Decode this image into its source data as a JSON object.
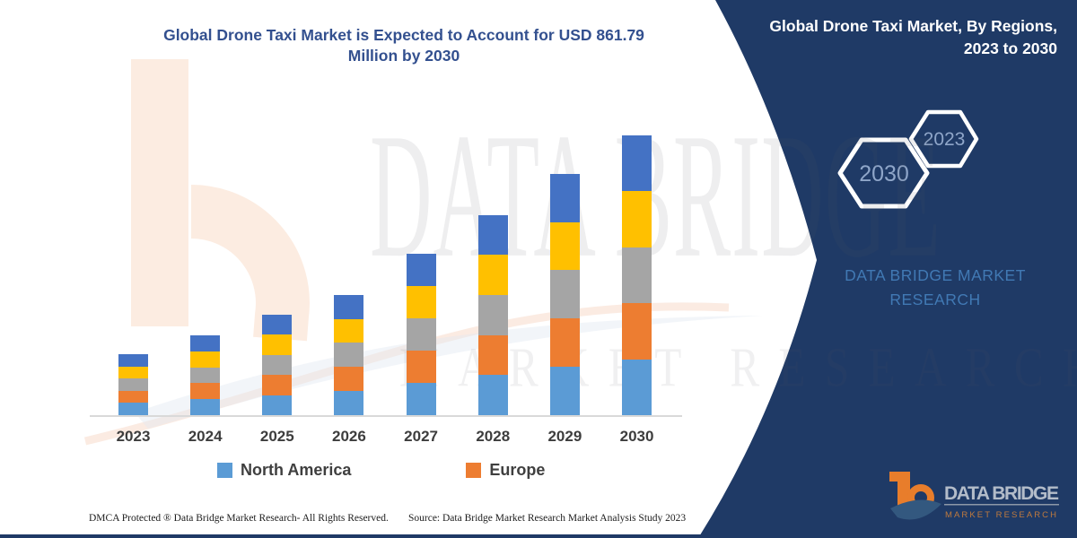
{
  "header": {
    "title_line1": "Global Drone Taxi Market is Expected to Account for USD 861.79",
    "title_line2": "Million by 2030"
  },
  "panel": {
    "title_line1": "Global Drone Taxi Market, By Regions,",
    "title_line2": "2023 to 2030",
    "hex_large_label": "2030",
    "hex_small_label": "2023",
    "brand_text": "DATA BRIDGE MARKET RESEARCH"
  },
  "watermark": {
    "line1": "DATA BRIDGE",
    "line2": "MARKET RESEARCH"
  },
  "legend": [
    {
      "label": "North America",
      "color": "#5B9BD5"
    },
    {
      "label": "Europe",
      "color": "#ED7D31"
    }
  ],
  "chart_data": {
    "type": "bar",
    "stacked": true,
    "title": "Global Drone Taxi Market is Expected to Account for USD 861.79 Million by 2030",
    "unit": "USD Million",
    "categories": [
      "2023",
      "2024",
      "2025",
      "2026",
      "2027",
      "2028",
      "2029",
      "2030"
    ],
    "totals": [
      188,
      246,
      310,
      371,
      498,
      617,
      744,
      861.79
    ],
    "series": [
      {
        "name": "North America",
        "color": "#5B9BD5",
        "values": [
          37.6,
          49.2,
          62.0,
          74.2,
          99.6,
          123.4,
          148.8,
          172.4
        ]
      },
      {
        "name": "Europe",
        "color": "#ED7D31",
        "values": [
          37.6,
          49.2,
          62.0,
          74.2,
          99.6,
          123.4,
          148.8,
          172.4
        ]
      },
      {
        "name": "unlabeled-region-gray",
        "color": "#A5A5A5",
        "values": [
          37.6,
          49.2,
          62.0,
          74.2,
          99.6,
          123.4,
          148.8,
          172.4
        ]
      },
      {
        "name": "unlabeled-region-yellow",
        "color": "#FFC000",
        "values": [
          37.6,
          49.2,
          62.0,
          74.2,
          99.6,
          123.4,
          148.8,
          172.4
        ]
      },
      {
        "name": "unlabeled-region-darkblue",
        "color": "#4472C4",
        "values": [
          37.6,
          49.2,
          62.0,
          74.2,
          99.6,
          123.4,
          148.8,
          172.4
        ]
      }
    ],
    "legend_entries_visible": [
      "North America",
      "Europe"
    ],
    "xlabel": "",
    "ylabel": "",
    "y_axis_shown": false,
    "gridlines": false,
    "legend_position": "bottom"
  },
  "logo": {
    "name_top": "DATA BRIDGE",
    "name_bottom": "MARKET RESEARCH"
  },
  "footer": {
    "dmca": "DMCA Protected ® Data Bridge Market Research-  All Rights Reserved.",
    "source": "Source: Data Bridge Market Research  Market Analysis Study 2023"
  },
  "colors": {
    "panel_navy": "#1F3A66",
    "title_blue": "#33508F",
    "brand_blue": "#4179B4",
    "logo_orange": "#E87D2B",
    "logo_silver": "#B3BCC9",
    "axis_line": "#D9D9D9"
  }
}
